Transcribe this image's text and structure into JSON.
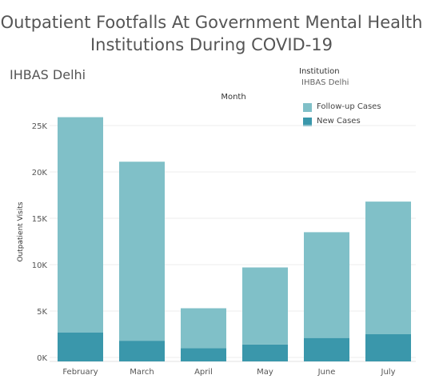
{
  "title_line1": "Outpatient Footfalls At Government Mental Health",
  "title_line2": "Institutions During COVID-19",
  "subtitle": "IHBAS Delhi",
  "legend": {
    "institution_title": "Institution",
    "institution_value": "IHBAS Delhi",
    "items": [
      {
        "label": "Follow-up Cases",
        "color": "#80c0c8"
      },
      {
        "label": "New Cases",
        "color": "#3a97ab"
      }
    ]
  },
  "chart_data": {
    "type": "bar",
    "stacked": true,
    "categories": [
      "February",
      "March",
      "April",
      "May",
      "June",
      "July"
    ],
    "series": [
      {
        "name": "New Cases",
        "color": "#3a97ab",
        "values": [
          2700,
          1800,
          1000,
          1400,
          2100,
          2500
        ]
      },
      {
        "name": "Follow-up Cases",
        "color": "#80c0c8",
        "values": [
          23200,
          19300,
          4300,
          8300,
          11400,
          14300
        ]
      }
    ],
    "x_header": "Month",
    "ylabel": "Outpatient Visits",
    "y_ticks": [
      0,
      5000,
      10000,
      15000,
      20000,
      25000
    ],
    "y_tick_labels": [
      "0K",
      "5K",
      "10K",
      "15K",
      "20K",
      "25K"
    ],
    "ylim": [
      0,
      26500
    ],
    "grid": true
  }
}
